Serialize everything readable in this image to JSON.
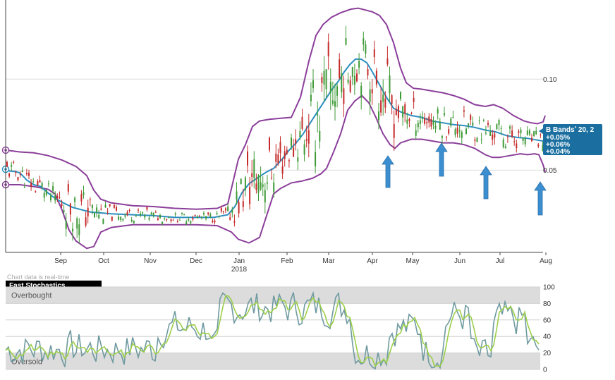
{
  "chart_data": [
    {
      "type": "candlestick",
      "legend": {
        "title": "B Bands",
        "superscript": "ª",
        "params": "20, 2",
        "lines": [
          "+0.05%",
          "+0.06%",
          "+0.04%"
        ]
      },
      "x_months": [
        "Sep",
        "Oct",
        "Nov",
        "Dec",
        "Jan",
        "Feb",
        "Mar",
        "Apr",
        "May",
        "Jun",
        "Jul",
        "Aug"
      ],
      "x_year": "2018",
      "y_ticks": [
        {
          "value": 0.1,
          "label": "0.10"
        },
        {
          "value": 0.05,
          "label": "0.05"
        }
      ],
      "ylim": [
        0.0048,
        0.1435
      ],
      "colors": {
        "up": "#3e9a36",
        "down": "#c62a2a",
        "middle_band": "#2c8fbf",
        "outer_band": "#8b3f9a",
        "arrow": "#3b8fd0",
        "legend_bg": "#1a6fa0"
      },
      "arrow_positions": [
        "Apr",
        "May",
        "Jun",
        "Aug"
      ],
      "middle_band": [
        [
          0,
          0.0505
        ],
        [
          6,
          0.0495
        ],
        [
          14,
          0.0492
        ],
        [
          20,
          0.0485
        ],
        [
          24,
          0.047
        ],
        [
          30,
          0.0445
        ],
        [
          40,
          0.042
        ],
        [
          50,
          0.041
        ],
        [
          60,
          0.0375
        ],
        [
          70,
          0.0345
        ],
        [
          82,
          0.032
        ],
        [
          95,
          0.0295
        ],
        [
          120,
          0.027
        ],
        [
          150,
          0.026
        ],
        [
          180,
          0.0255
        ],
        [
          210,
          0.025
        ],
        [
          240,
          0.024
        ],
        [
          270,
          0.024
        ],
        [
          295,
          0.024
        ],
        [
          315,
          0.0255
        ],
        [
          325,
          0.03
        ],
        [
          335,
          0.0375
        ],
        [
          345,
          0.0425
        ],
        [
          358,
          0.046
        ],
        [
          370,
          0.049
        ],
        [
          380,
          0.051
        ],
        [
          392,
          0.056
        ],
        [
          402,
          0.061
        ],
        [
          412,
          0.065
        ],
        [
          422,
          0.07
        ],
        [
          432,
          0.076
        ],
        [
          442,
          0.082
        ],
        [
          452,
          0.088
        ],
        [
          462,
          0.094
        ],
        [
          472,
          0.099
        ],
        [
          480,
          0.104
        ],
        [
          488,
          0.108
        ],
        [
          496,
          0.111
        ],
        [
          504,
          0.111
        ],
        [
          512,
          0.109
        ],
        [
          520,
          0.104
        ],
        [
          530,
          0.097
        ],
        [
          540,
          0.09
        ],
        [
          550,
          0.084
        ],
        [
          560,
          0.082
        ],
        [
          575,
          0.08
        ],
        [
          590,
          0.079
        ],
        [
          605,
          0.077
        ],
        [
          620,
          0.076
        ],
        [
          635,
          0.075
        ],
        [
          650,
          0.0745
        ],
        [
          665,
          0.0735
        ],
        [
          680,
          0.072
        ],
        [
          695,
          0.071
        ],
        [
          710,
          0.069
        ],
        [
          725,
          0.068
        ],
        [
          740,
          0.0675
        ],
        [
          754,
          0.0665
        ],
        [
          762,
          0.066
        ]
      ],
      "upper_band": [
        [
          0,
          0.061
        ],
        [
          20,
          0.06
        ],
        [
          40,
          0.0595
        ],
        [
          60,
          0.058
        ],
        [
          80,
          0.0555
        ],
        [
          100,
          0.052
        ],
        [
          115,
          0.047
        ],
        [
          125,
          0.039
        ],
        [
          135,
          0.034
        ],
        [
          150,
          0.032
        ],
        [
          180,
          0.0305
        ],
        [
          210,
          0.03
        ],
        [
          240,
          0.029
        ],
        [
          270,
          0.0285
        ],
        [
          300,
          0.029
        ],
        [
          315,
          0.0315
        ],
        [
          330,
          0.056
        ],
        [
          340,
          0.064
        ],
        [
          350,
          0.074
        ],
        [
          360,
          0.077
        ],
        [
          375,
          0.078
        ],
        [
          390,
          0.0785
        ],
        [
          405,
          0.079
        ],
        [
          418,
          0.09
        ],
        [
          430,
          0.11
        ],
        [
          440,
          0.124
        ],
        [
          450,
          0.13
        ],
        [
          462,
          0.134
        ],
        [
          475,
          0.1365
        ],
        [
          490,
          0.1385
        ],
        [
          500,
          0.139
        ],
        [
          510,
          0.138
        ],
        [
          520,
          0.137
        ],
        [
          530,
          0.135
        ],
        [
          540,
          0.13
        ],
        [
          550,
          0.12
        ],
        [
          560,
          0.106
        ],
        [
          568,
          0.098
        ],
        [
          578,
          0.095
        ],
        [
          590,
          0.0945
        ],
        [
          605,
          0.0935
        ],
        [
          620,
          0.0925
        ],
        [
          635,
          0.091
        ],
        [
          650,
          0.089
        ],
        [
          665,
          0.086
        ],
        [
          680,
          0.085
        ],
        [
          692,
          0.086
        ],
        [
          705,
          0.084
        ],
        [
          720,
          0.08
        ],
        [
          735,
          0.077
        ],
        [
          745,
          0.076
        ],
        [
          754,
          0.0755
        ],
        [
          762,
          0.0765
        ],
        [
          765,
          0.08
        ]
      ],
      "lower_band": [
        [
          0,
          0.042
        ],
        [
          20,
          0.042
        ],
        [
          40,
          0.041
        ],
        [
          60,
          0.0395
        ],
        [
          70,
          0.037
        ],
        [
          80,
          0.028
        ],
        [
          90,
          0.017
        ],
        [
          100,
          0.011
        ],
        [
          115,
          0.007
        ],
        [
          125,
          0.008
        ],
        [
          135,
          0.016
        ],
        [
          150,
          0.0185
        ],
        [
          180,
          0.02
        ],
        [
          210,
          0.02
        ],
        [
          240,
          0.02
        ],
        [
          270,
          0.02
        ],
        [
          300,
          0.0195
        ],
        [
          320,
          0.016
        ],
        [
          330,
          0.012
        ],
        [
          345,
          0.01
        ],
        [
          360,
          0.013
        ],
        [
          370,
          0.025
        ],
        [
          380,
          0.037
        ],
        [
          390,
          0.04
        ],
        [
          405,
          0.043
        ],
        [
          420,
          0.044
        ],
        [
          435,
          0.0455
        ],
        [
          447,
          0.048
        ],
        [
          455,
          0.051
        ],
        [
          465,
          0.06
        ],
        [
          475,
          0.07
        ],
        [
          485,
          0.083
        ],
        [
          495,
          0.088
        ],
        [
          505,
          0.091
        ],
        [
          515,
          0.087
        ],
        [
          525,
          0.079
        ],
        [
          535,
          0.07
        ],
        [
          545,
          0.064
        ],
        [
          552,
          0.062
        ],
        [
          560,
          0.065
        ],
        [
          575,
          0.067
        ],
        [
          590,
          0.067
        ],
        [
          605,
          0.066
        ],
        [
          620,
          0.065
        ],
        [
          635,
          0.065
        ],
        [
          650,
          0.064
        ],
        [
          665,
          0.062
        ],
        [
          680,
          0.0585
        ],
        [
          690,
          0.057
        ],
        [
          700,
          0.057
        ],
        [
          715,
          0.058
        ],
        [
          730,
          0.059
        ],
        [
          740,
          0.0585
        ],
        [
          750,
          0.059
        ],
        [
          756,
          0.0585
        ],
        [
          762,
          0.053
        ],
        [
          765,
          0.049
        ]
      ]
    },
    {
      "type": "line",
      "title": "Fast Stochastics",
      "note": "Chart data is real-time",
      "zones": {
        "overbought": "Overbought",
        "oversold": "Oversold"
      },
      "y_ticks": [
        100,
        80,
        60,
        40,
        20,
        0
      ],
      "ylim": [
        0,
        100
      ],
      "colors": {
        "k_line": "#6f9aa0",
        "d_line": "#9ccf4a",
        "zone_bg": "#dcdcdc"
      }
    }
  ]
}
